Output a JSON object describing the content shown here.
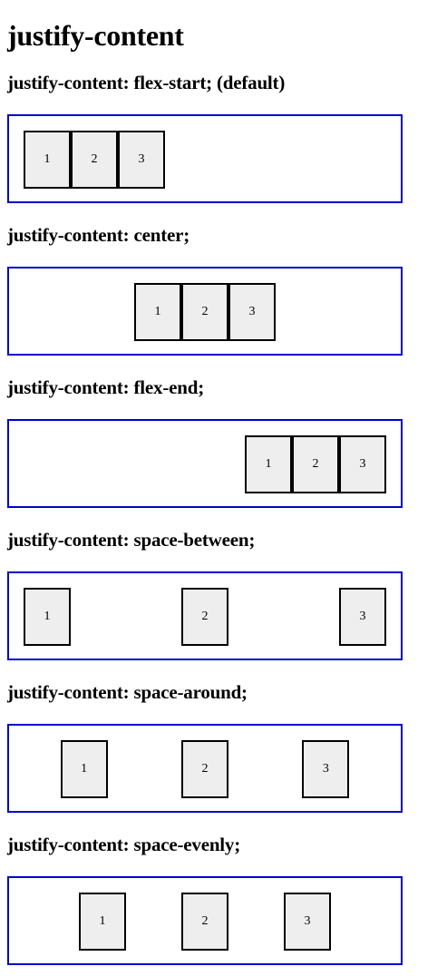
{
  "page": {
    "title": "justify-content"
  },
  "sections": [
    {
      "title": "justify-content: flex-start; (default)",
      "items": [
        "1",
        "2",
        "3"
      ]
    },
    {
      "title": "justify-content: center;",
      "items": [
        "1",
        "2",
        "3"
      ]
    },
    {
      "title": "justify-content: flex-end;",
      "items": [
        "1",
        "2",
        "3"
      ]
    },
    {
      "title": "justify-content: space-between;",
      "items": [
        "1",
        "2",
        "3"
      ]
    },
    {
      "title": "justify-content: space-around;",
      "items": [
        "1",
        "2",
        "3"
      ]
    },
    {
      "title": "justify-content: space-evenly;",
      "items": [
        "1",
        "2",
        "3"
      ]
    }
  ],
  "colors": {
    "container_border": "#0000cc",
    "item_background": "#eeeeee",
    "item_border": "#000000"
  }
}
